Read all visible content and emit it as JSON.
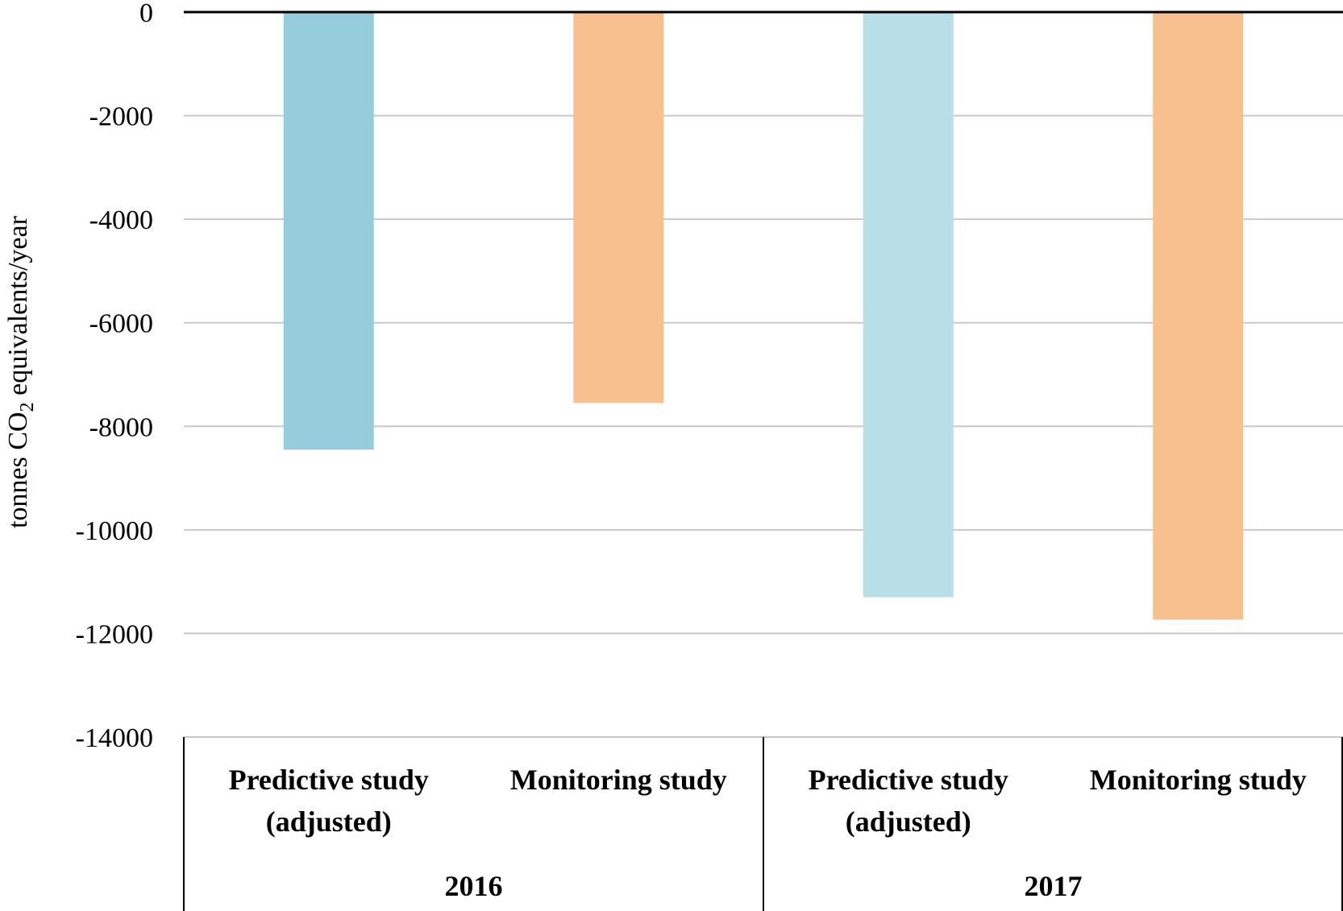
{
  "chart_data": {
    "type": "bar",
    "categories": [
      [
        "Predictive study",
        "(adjusted)"
      ],
      [
        "Monitoring study"
      ],
      [
        "Predictive study",
        "(adjusted)"
      ],
      [
        "Monitoring study"
      ]
    ],
    "groups": [
      {
        "label": "2016",
        "span": 2
      },
      {
        "label": "2017",
        "span": 2
      }
    ],
    "values": [
      -8450,
      -7550,
      -11300,
      -11730
    ],
    "colors": [
      "#96cddd",
      "#f9c08f",
      "#b8dfe8",
      "#f9c08f"
    ],
    "ylabel_parts": [
      "tonnes CO",
      "2",
      " equivalents/year"
    ],
    "ylim": [
      -14000,
      0
    ],
    "yticks": [
      0,
      -2000,
      -4000,
      -6000,
      -8000,
      -10000,
      -12000,
      -14000
    ],
    "grid": true
  }
}
